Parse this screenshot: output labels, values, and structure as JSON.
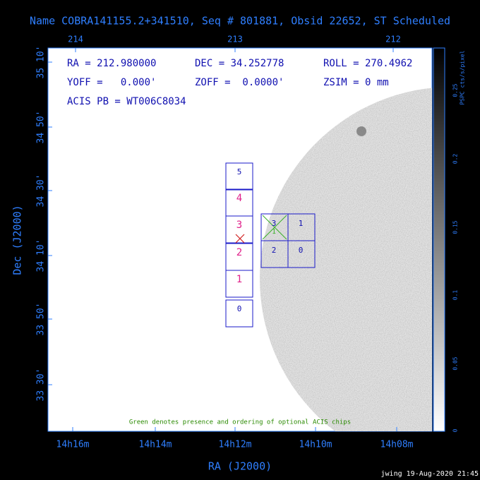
{
  "header": {
    "title": "Name COBRA141155.2+341510, Seq # 801881, Obsid 22652, ST Scheduled"
  },
  "info": [
    [
      "RA = 212.980000",
      "DEC = 34.252778",
      "ROLL = 270.4962"
    ],
    [
      "YOFF =   0.000'",
      "ZOFF =  0.0000'",
      "ZSIM = 0 mm"
    ],
    [
      "ACIS PB = WT006C8034"
    ]
  ],
  "top_axis": [
    "214",
    "213",
    "212"
  ],
  "left_axis": [
    "35 10'",
    "34 50'",
    "34 30'",
    "34 10'",
    "33 50'",
    "33 30'"
  ],
  "bottom_axis": [
    "14h16m",
    "14h14m",
    "14h12m",
    "14h10m",
    "14h08m"
  ],
  "x_label": "RA (J2000)",
  "y_label": "Dec (J2000)",
  "colorbar": {
    "label": "PSPC cts/s/pixel",
    "ticks": [
      "0",
      "0.05",
      "0.1",
      "0.15",
      "0.2",
      "0.25"
    ]
  },
  "s_chips": [
    "0",
    "1",
    "2",
    "3",
    "4",
    "5"
  ],
  "i_chips": [
    "3",
    "1",
    "2",
    "0"
  ],
  "optional_mark": "1",
  "note": "Green denotes presence and ordering of optional ACIS chips",
  "footer": "jwing 19-Aug-2020 21:45"
}
